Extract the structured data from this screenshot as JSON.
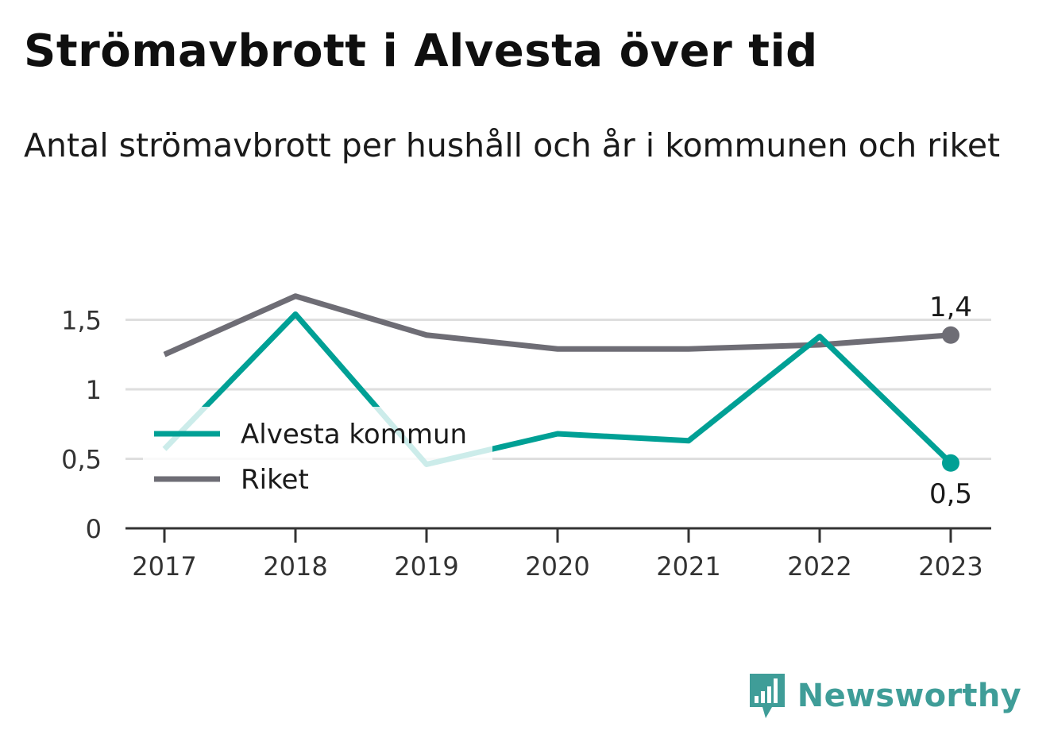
{
  "title": "Strömavbrott i Alvesta över tid",
  "subtitle": "Antal strömavbrott per hushåll och år i kommunen och riket",
  "brand": {
    "name": "Newsworthy"
  },
  "chart_data": {
    "type": "line",
    "categories": [
      "2017",
      "2018",
      "2019",
      "2020",
      "2021",
      "2022",
      "2023"
    ],
    "series": [
      {
        "name": "Alvesta kommun",
        "color": "#00a095",
        "values": [
          0.57,
          1.54,
          0.46,
          0.68,
          0.63,
          1.38,
          0.47
        ],
        "end_label": "0,5"
      },
      {
        "name": "Riket",
        "color": "#6e6d75",
        "values": [
          1.25,
          1.67,
          1.39,
          1.29,
          1.29,
          1.32,
          1.39
        ],
        "end_label": "1,4"
      }
    ],
    "y_ticks": [
      {
        "value": 0,
        "label": "0"
      },
      {
        "value": 0.5,
        "label": "0,5"
      },
      {
        "value": 1,
        "label": "1"
      },
      {
        "value": 1.5,
        "label": "1,5"
      }
    ],
    "ylim": [
      0,
      1.75
    ],
    "grid": true,
    "legend_position": "bottom-left"
  }
}
